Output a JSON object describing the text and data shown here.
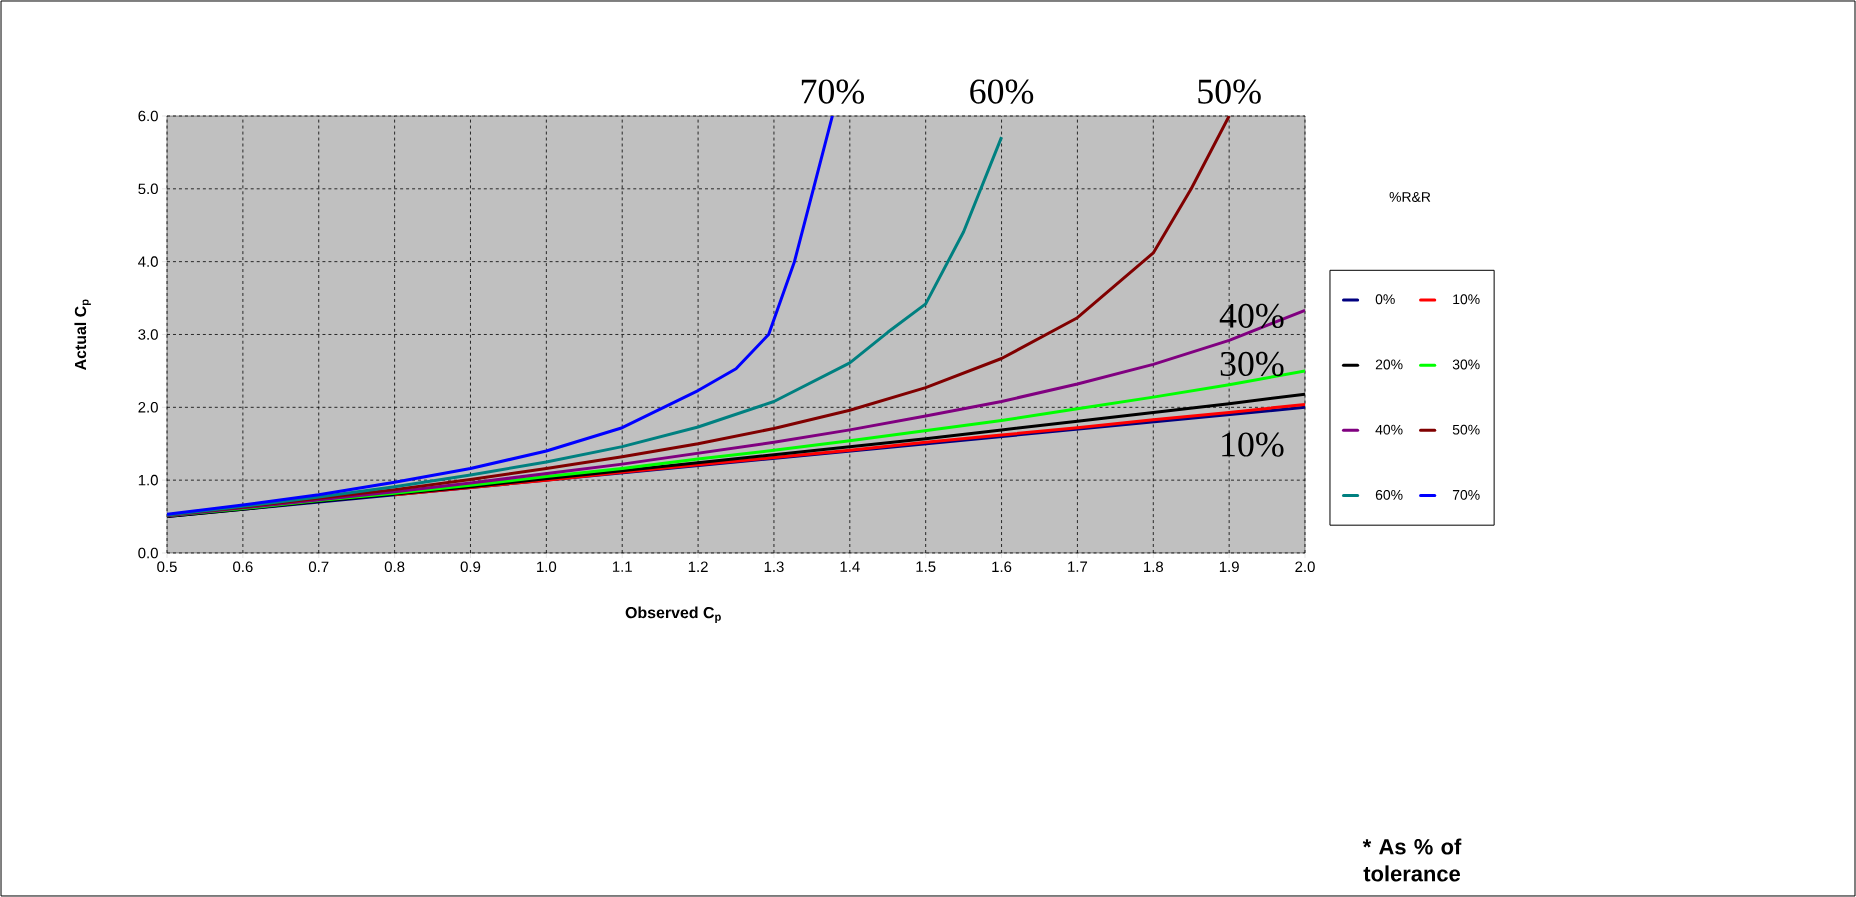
{
  "chart_data": {
    "type": "line",
    "xlabel": "Observed C$_{p}$",
    "ylabel": "Actual C$_{p}$",
    "legend_title": "%R&R",
    "legend": "right",
    "grid": true,
    "xlim": [
      0.5,
      2.0
    ],
    "ylim": [
      0.0,
      6.0
    ],
    "xticks": [
      0.5,
      0.6,
      0.7,
      0.8,
      0.9,
      {
        "value": 1.0,
        "label": "1.0"
      },
      1.1,
      1.2,
      1.3,
      1.4,
      1.5,
      1.6,
      1.7,
      1.8,
      1.9,
      {
        "value": 2.0,
        "label": "2.0"
      }
    ],
    "yticks": [
      {
        "value": 0,
        "label": "0.0"
      },
      {
        "value": 1,
        "label": "1.0"
      },
      {
        "value": 2,
        "label": "2.0"
      },
      {
        "value": 3,
        "label": "3.0"
      },
      {
        "value": 4,
        "label": "4.0"
      },
      {
        "value": 5,
        "label": "5.0"
      },
      {
        "value": 6,
        "label": "6.0"
      }
    ],
    "series": [
      {
        "name": "0%",
        "color": "#000080",
        "x": [
          0.5,
          2.0
        ],
        "values": [
          0.5,
          2.0
        ]
      },
      {
        "name": "10%",
        "color": "#ff0000",
        "x": [
          0.8,
          0.9,
          1.0,
          1.1,
          1.2,
          1.3,
          1.4,
          1.5,
          1.6,
          1.7,
          1.8,
          1.9,
          2.0
        ],
        "values": [
          0.8,
          0.9,
          1.0,
          1.11,
          1.21,
          1.31,
          1.41,
          1.52,
          1.62,
          1.72,
          1.83,
          1.93,
          2.04
        ]
      },
      {
        "name": "20%",
        "color": "#000000",
        "x": [
          0.5,
          0.6,
          0.7,
          0.8,
          0.9,
          1.0,
          1.1,
          1.2,
          1.3,
          1.4,
          1.5,
          1.6,
          1.7,
          1.8,
          1.9,
          2.0
        ],
        "values": [
          0.5,
          0.6,
          0.71,
          0.81,
          0.91,
          1.02,
          1.13,
          1.24,
          1.35,
          1.46,
          1.57,
          1.69,
          1.81,
          1.93,
          2.05,
          2.18
        ]
      },
      {
        "name": "30%",
        "color": "#00ff00",
        "x": [
          0.5,
          0.6,
          0.7,
          0.8,
          0.9,
          1.0,
          1.1,
          1.2,
          1.3,
          1.4,
          1.5,
          1.6,
          1.7,
          1.8,
          1.9,
          2.0
        ],
        "values": [
          0.51,
          0.61,
          0.72,
          0.82,
          0.93,
          1.05,
          1.16,
          1.29,
          1.41,
          1.54,
          1.68,
          1.82,
          1.98,
          2.14,
          2.31,
          2.5
        ]
      },
      {
        "name": "40%",
        "color": "#800080",
        "x": [
          0.5,
          0.6,
          0.7,
          0.8,
          0.9,
          1.0,
          1.1,
          1.2,
          1.3,
          1.4,
          1.5,
          1.6,
          1.7,
          1.8,
          1.9,
          2.0
        ],
        "values": [
          0.51,
          0.62,
          0.73,
          0.84,
          0.96,
          1.09,
          1.22,
          1.37,
          1.52,
          1.69,
          1.88,
          2.08,
          2.32,
          2.59,
          2.92,
          3.33
        ]
      },
      {
        "name": "50%",
        "color": "#800000",
        "x": [
          0.5,
          0.6,
          0.7,
          0.8,
          0.9,
          1.0,
          1.1,
          1.2,
          1.3,
          1.4,
          1.5,
          1.6,
          1.7,
          1.8,
          1.85,
          1.9
        ],
        "values": [
          0.52,
          0.63,
          0.75,
          0.87,
          1.01,
          1.16,
          1.32,
          1.5,
          1.71,
          1.96,
          2.27,
          2.67,
          3.23,
          4.12,
          5.0,
          6.0
        ]
      },
      {
        "name": "60%",
        "color": "#008080",
        "x": [
          0.5,
          0.6,
          0.7,
          0.8,
          0.9,
          1.0,
          1.1,
          1.2,
          1.3,
          1.4,
          1.45,
          1.5,
          1.55,
          1.6
        ],
        "values": [
          0.52,
          0.64,
          0.77,
          0.91,
          1.07,
          1.25,
          1.46,
          1.73,
          2.08,
          2.61,
          3.03,
          3.42,
          4.41,
          5.71
        ]
      },
      {
        "name": "70%",
        "color": "#0000ff",
        "x": [
          0.5,
          0.6,
          0.7,
          0.8,
          0.9,
          1.0,
          1.1,
          1.2,
          1.25,
          1.293,
          1.327,
          1.352,
          1.377
        ],
        "values": [
          0.53,
          0.66,
          0.8,
          0.97,
          1.16,
          1.4,
          1.72,
          2.23,
          2.53,
          3.0,
          4.0,
          5.0,
          6.0
        ]
      }
    ],
    "annotations": [
      {
        "text": "70%",
        "x": 1.377,
        "y": 6.0
      },
      {
        "text": "60%",
        "x": 1.6,
        "y": 5.71
      },
      {
        "text": "50%",
        "x": 1.9,
        "y": 6.0
      },
      {
        "text": "40%",
        "x": 1.93,
        "y": 3.03
      },
      {
        "text": "30%",
        "x": 1.93,
        "y": 2.37
      },
      {
        "text": "10%",
        "x": 1.93,
        "y": 1.96
      },
      "* As % of tolerance"
    ]
  }
}
